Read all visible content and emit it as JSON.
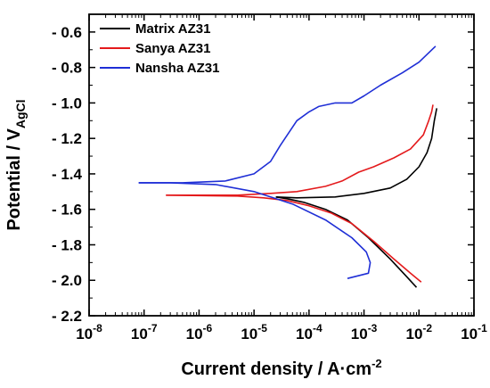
{
  "chart_data": {
    "type": "line",
    "xlabel": {
      "main": "Current density / A·cm",
      "sup": "-2"
    },
    "ylabel": {
      "main": "Potential / V",
      "sub": "AgCl"
    },
    "x_scale": "log",
    "xlim": [
      1e-08,
      0.1
    ],
    "ylim": [
      -2.2,
      -0.5
    ],
    "y_inverted": true,
    "x_tick_labels": [
      {
        "base": "10",
        "exp": "-8",
        "value": 1e-08
      },
      {
        "base": "10",
        "exp": "-7",
        "value": 1e-07
      },
      {
        "base": "10",
        "exp": "-6",
        "value": 1e-06
      },
      {
        "base": "10",
        "exp": "-5",
        "value": 1e-05
      },
      {
        "base": "10",
        "exp": "-4",
        "value": 0.0001
      },
      {
        "base": "10",
        "exp": "-3",
        "value": 0.001
      },
      {
        "base": "10",
        "exp": "-2",
        "value": 0.01
      },
      {
        "base": "10",
        "exp": "-1",
        "value": 0.1
      }
    ],
    "y_ticks": [
      {
        "label": "- 0.6",
        "value": -0.6
      },
      {
        "label": "- 0.8",
        "value": -0.8
      },
      {
        "label": "- 1.0",
        "value": -1.0
      },
      {
        "label": "- 1.2",
        "value": -1.2
      },
      {
        "label": "- 1.4",
        "value": -1.4
      },
      {
        "label": "- 1.6",
        "value": -1.6
      },
      {
        "label": "- 1.8",
        "value": -1.8
      },
      {
        "label": "- 2.0",
        "value": -2.0
      },
      {
        "label": "- 2.2",
        "value": -2.2
      }
    ],
    "legend_position": "top-left",
    "grid": false,
    "series": [
      {
        "name": "Matrix AZ31",
        "color": "#000000",
        "cathodic": [
          [
            0.009,
            -2.04
          ],
          [
            0.006,
            -1.98
          ],
          [
            0.003,
            -1.88
          ],
          [
            0.0012,
            -1.76
          ],
          [
            0.0005,
            -1.66
          ],
          [
            0.0002,
            -1.6
          ],
          [
            8e-05,
            -1.56
          ],
          [
            4e-05,
            -1.54
          ],
          [
            2.5e-05,
            -1.53
          ]
        ],
        "anodic": [
          [
            2.5e-05,
            -1.53
          ],
          [
            6e-05,
            -1.535
          ],
          [
            0.0003,
            -1.53
          ],
          [
            0.001,
            -1.51
          ],
          [
            0.003,
            -1.48
          ],
          [
            0.006,
            -1.43
          ],
          [
            0.01,
            -1.36
          ],
          [
            0.014,
            -1.28
          ],
          [
            0.017,
            -1.2
          ],
          [
            0.019,
            -1.1
          ],
          [
            0.021,
            -1.03
          ]
        ]
      },
      {
        "name": "Sanya AZ31",
        "color": "#e41a1c",
        "cathodic": [
          [
            0.011,
            -2.01
          ],
          [
            0.007,
            -1.96
          ],
          [
            0.0035,
            -1.88
          ],
          [
            0.0015,
            -1.78
          ],
          [
            0.0006,
            -1.68
          ],
          [
            0.00025,
            -1.62
          ],
          [
            0.0001,
            -1.58
          ],
          [
            4e-05,
            -1.55
          ],
          [
            1.5e-05,
            -1.535
          ],
          [
            5e-06,
            -1.525
          ],
          [
            2.5e-07,
            -1.52
          ]
        ],
        "anodic": [
          [
            2.5e-07,
            -1.52
          ],
          [
            2e-06,
            -1.52
          ],
          [
            5e-06,
            -1.52
          ],
          [
            2e-05,
            -1.51
          ],
          [
            6e-05,
            -1.5
          ],
          [
            0.0002,
            -1.47
          ],
          [
            0.0004,
            -1.44
          ],
          [
            0.0008,
            -1.39
          ],
          [
            0.0015,
            -1.36
          ],
          [
            0.0035,
            -1.31
          ],
          [
            0.007,
            -1.26
          ],
          [
            0.012,
            -1.18
          ],
          [
            0.015,
            -1.1
          ],
          [
            0.017,
            -1.05
          ],
          [
            0.018,
            -1.01
          ]
        ]
      },
      {
        "name": "Nansha AZ31",
        "color": "#1f2fd6",
        "cathodic": [
          [
            0.0005,
            -1.99
          ],
          [
            0.0012,
            -1.96
          ],
          [
            0.0013,
            -1.9
          ],
          [
            0.0011,
            -1.84
          ],
          [
            0.0006,
            -1.76
          ],
          [
            0.0002,
            -1.66
          ],
          [
            5e-05,
            -1.57
          ],
          [
            1e-05,
            -1.5
          ],
          [
            2e-06,
            -1.46
          ],
          [
            3e-07,
            -1.45
          ],
          [
            8e-08,
            -1.45
          ]
        ],
        "anodic": [
          [
            8e-08,
            -1.45
          ],
          [
            5e-07,
            -1.45
          ],
          [
            3e-06,
            -1.44
          ],
          [
            1e-05,
            -1.4
          ],
          [
            2e-05,
            -1.33
          ],
          [
            3e-05,
            -1.24
          ],
          [
            6e-05,
            -1.1
          ],
          [
            0.0001,
            -1.05
          ],
          [
            0.00015,
            -1.02
          ],
          [
            0.0003,
            -1.0
          ],
          [
            0.0006,
            -1.0
          ],
          [
            0.001,
            -0.96
          ],
          [
            0.002,
            -0.9
          ],
          [
            0.005,
            -0.83
          ],
          [
            0.01,
            -0.77
          ],
          [
            0.02,
            -0.68
          ]
        ]
      }
    ]
  }
}
